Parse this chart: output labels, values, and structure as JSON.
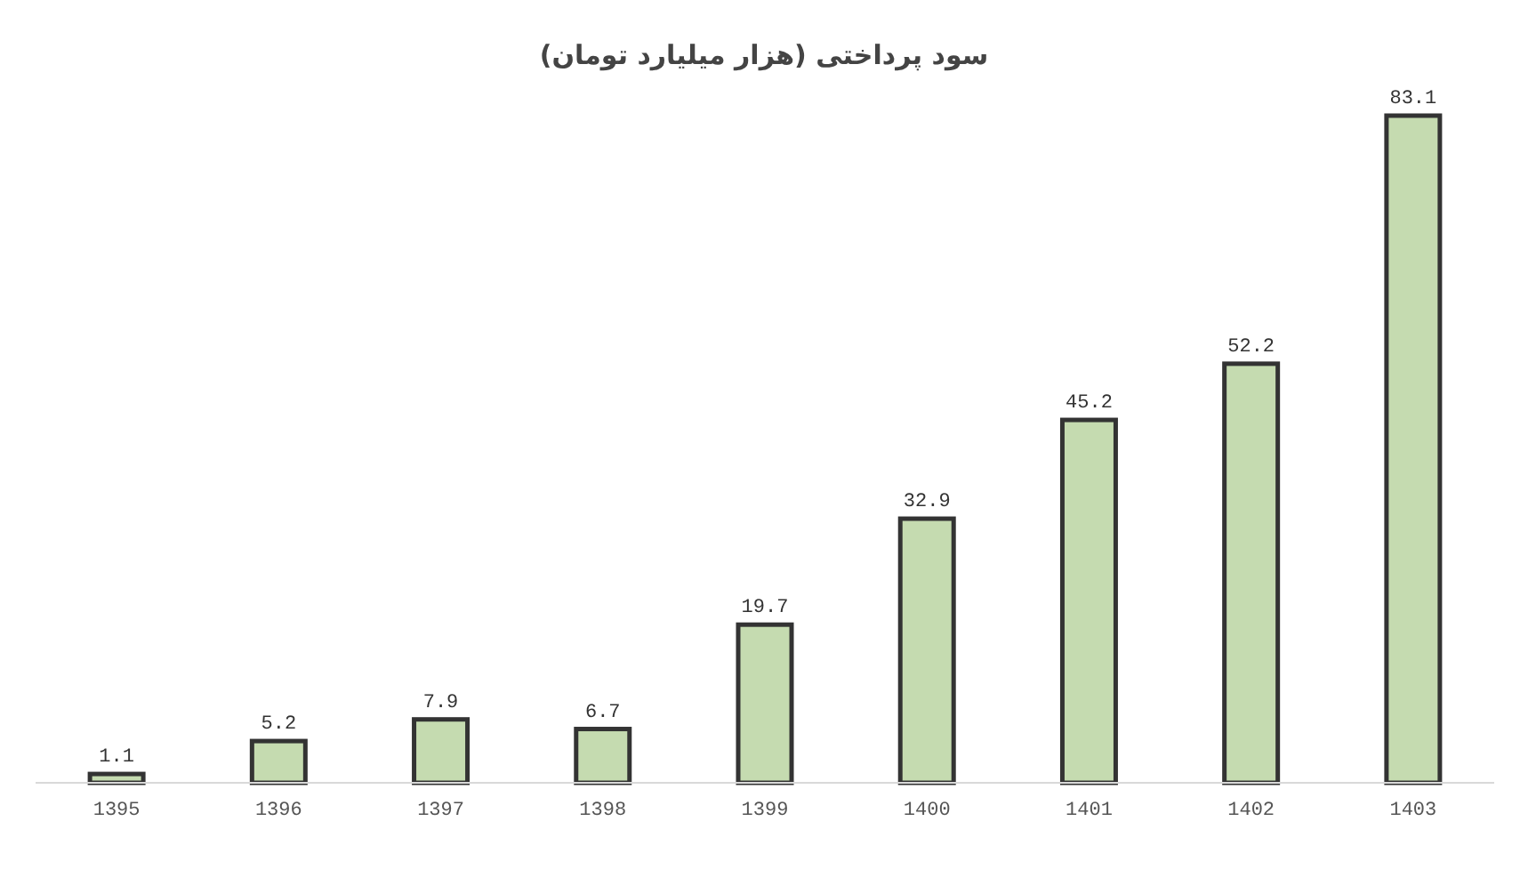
{
  "chart_data": {
    "type": "bar",
    "title": "سود پرداختی (هزار میلیارد تومان)",
    "categories": [
      "1395",
      "1396",
      "1397",
      "1398",
      "1399",
      "1400",
      "1401",
      "1402",
      "1403"
    ],
    "values": [
      1.1,
      5.2,
      7.9,
      6.7,
      19.7,
      32.9,
      45.2,
      52.2,
      83.1
    ],
    "color": "#c5dbb0",
    "data_labels": true
  }
}
